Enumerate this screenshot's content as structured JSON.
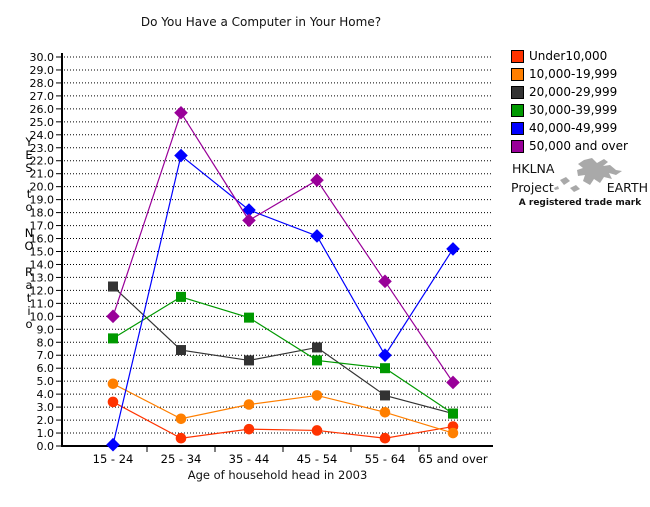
{
  "title": "Do You Have a Computer in Your Home?",
  "chart_data": {
    "type": "line",
    "title": "Do You Have a Computer in Your Home?",
    "xlabel": "Age of household head in 2003",
    "ylabel": "YES to NO Ratio",
    "categories": [
      "15 - 24",
      "25 - 34",
      "35 - 44",
      "45 - 54",
      "55 - 64",
      "65 and over"
    ],
    "ylim": [
      0,
      30
    ],
    "ytick_step": 1.0,
    "ytick_format": "one-decimal",
    "grid": "horizontal-dotted",
    "legend_position": "top-right",
    "series": [
      {
        "name": "Under10,000",
        "color": "#ff3300",
        "marker": "circle",
        "values": [
          3.4,
          0.6,
          1.3,
          1.2,
          0.6,
          1.5
        ]
      },
      {
        "name": "10,000-19,999",
        "color": "#ff7f00",
        "marker": "circle",
        "values": [
          4.8,
          2.1,
          3.2,
          3.9,
          2.6,
          1.0
        ]
      },
      {
        "name": "20,000-29,999",
        "color": "#333333",
        "marker": "square",
        "values": [
          12.3,
          7.4,
          6.6,
          7.6,
          3.9,
          2.5
        ]
      },
      {
        "name": "30,000-39,999",
        "color": "#009900",
        "marker": "square",
        "values": [
          8.3,
          11.5,
          9.9,
          6.6,
          6.0,
          2.5
        ]
      },
      {
        "name": "40,000-49,999",
        "color": "#0000ff",
        "marker": "diamond",
        "values": [
          0.1,
          22.4,
          18.2,
          16.2,
          7.0,
          15.2
        ]
      },
      {
        "name": "50,000 and over",
        "color": "#990099",
        "marker": "diamond",
        "values": [
          10.0,
          25.7,
          17.4,
          20.5,
          12.7,
          4.9
        ]
      }
    ]
  },
  "logo": {
    "line1": "HKLNA",
    "line2": "Project",
    "line3": "EARTH",
    "tagline": "A registered trade mark"
  }
}
